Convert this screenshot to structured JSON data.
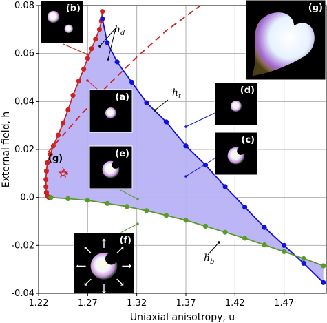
{
  "chart_data": {
    "type": "line",
    "title": "",
    "xlabel": "Uniaxial anisotropy, u",
    "ylabel": "External field, h",
    "xlim": [
      1.22,
      1.513
    ],
    "ylim": [
      -0.04,
      0.08
    ],
    "xticks": [
      "1.22",
      "1.27",
      "1.32",
      "1.37",
      "1.42",
      "1.47"
    ],
    "yticks": [
      "-0.04",
      "-0.02",
      "0.0",
      "0.02",
      "0.04",
      "0.06",
      "0.08"
    ],
    "grid": true,
    "curve_labels": {
      "hd": "h",
      "hd_sub": "d",
      "ht": "h",
      "ht_sub": "t",
      "hb": "h",
      "hb_sub": "b"
    },
    "series": [
      {
        "id": "red",
        "color": "#cc2222",
        "x": [
          1.285,
          1.284,
          1.282,
          1.278,
          1.274,
          1.27,
          1.266,
          1.261,
          1.255,
          1.25,
          1.245,
          1.24,
          1.235,
          1.232,
          1.229,
          1.228,
          1.2275,
          1.2275,
          1.228,
          1.229,
          1.2305,
          1.2325
        ],
        "y": [
          0.0775,
          0.0735,
          0.07,
          0.066,
          0.062,
          0.058,
          0.0535,
          0.0485,
          0.0425,
          0.0365,
          0.031,
          0.026,
          0.0215,
          0.018,
          0.0145,
          0.011,
          0.0075,
          0.0045,
          0.002,
          0.0005,
          0.0,
          0.0
        ]
      },
      {
        "id": "blue",
        "color": "#1111dd",
        "x": [
          1.285,
          1.29,
          1.3,
          1.315,
          1.33,
          1.35,
          1.37,
          1.39,
          1.41,
          1.43,
          1.45,
          1.47,
          1.49,
          1.51
        ],
        "y": [
          0.0745,
          0.0645,
          0.0565,
          0.048,
          0.0395,
          0.0315,
          0.0215,
          0.0135,
          0.0045,
          -0.004,
          -0.0125,
          -0.02,
          -0.0275,
          -0.0355
        ]
      },
      {
        "id": "green",
        "color": "#5a9a2a",
        "x": [
          1.2325,
          1.25,
          1.27,
          1.29,
          1.31,
          1.33,
          1.35,
          1.37,
          1.39,
          1.41,
          1.43,
          1.45,
          1.47,
          1.49,
          1.51
        ],
        "y": [
          0.0,
          -0.0005,
          -0.0012,
          -0.0025,
          -0.0038,
          -0.0055,
          -0.0075,
          -0.0095,
          -0.012,
          -0.0145,
          -0.017,
          -0.0198,
          -0.0226,
          -0.0255,
          -0.0285
        ]
      }
    ],
    "dashed_line": {
      "color": "#cc2222",
      "x": [
        1.23,
        1.26,
        1.29,
        1.32,
        1.35,
        1.38,
        1.4
      ],
      "y": [
        0.019,
        0.033,
        0.0465,
        0.0585,
        0.0695,
        0.0785,
        0.085
      ]
    },
    "marker_star": {
      "label": "(g)",
      "x": 1.245,
      "y": 0.01
    },
    "inset_labels": [
      "(a)",
      "(b)",
      "(c)",
      "(d)",
      "(e)",
      "(f)",
      "(g)"
    ]
  }
}
